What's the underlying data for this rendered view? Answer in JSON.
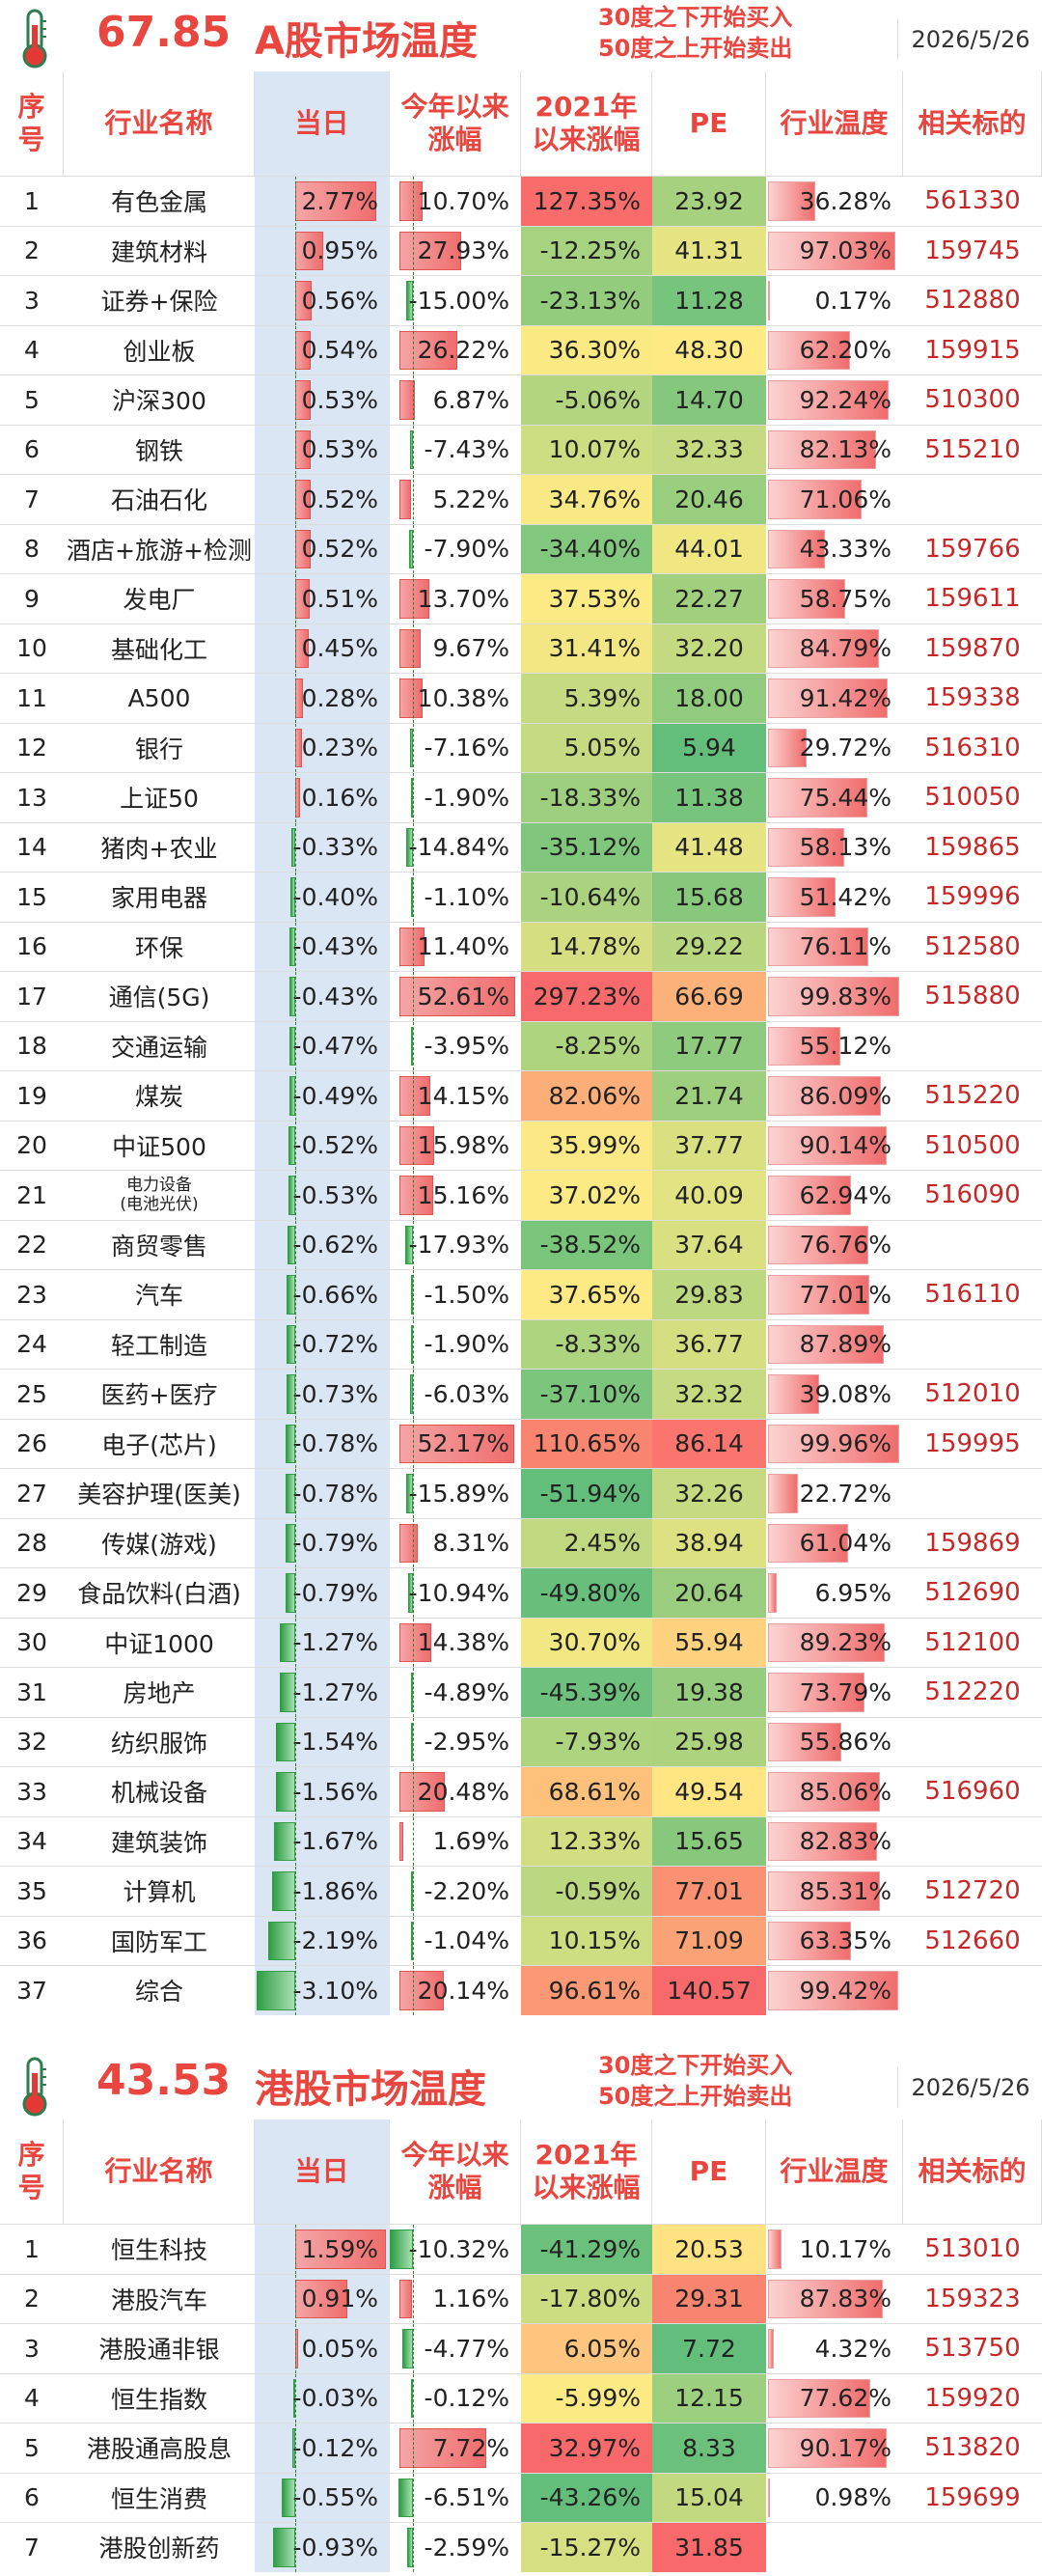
{
  "colors": {
    "accent": "#e8463f",
    "code": "#c62828",
    "today_bg": "#dbe6f5",
    "pos_bar": "#f06d6d",
    "neg_bar": "#2f9e44",
    "heat_low": "#63be7b",
    "heat_mid": "#ffeb84",
    "heat_high": "#f8696b"
  },
  "headers": {
    "seq": "序\n号",
    "name": "行业名称",
    "today": "当日",
    "ytd": "今年以来\n涨幅",
    "since2021": "2021年\n以来涨幅",
    "pe": "PE",
    "heat": "行业温度",
    "code": "相关标的"
  },
  "sections": [
    {
      "temperature": "67.85",
      "title": "A股市场温度",
      "strategy_line1": "30度之下开始买入",
      "strategy_line2": "50度之上开始卖出",
      "date": "2026/5/26",
      "rows": [
        {
          "seq": "1",
          "name": "有色金属",
          "today": "2.77%",
          "ytd": "10.70%",
          "since2021": "127.35%",
          "pe": "23.92",
          "heat": "36.28%",
          "code": "561330"
        },
        {
          "seq": "2",
          "name": "建筑材料",
          "today": "0.95%",
          "ytd": "27.93%",
          "since2021": "-12.25%",
          "pe": "41.31",
          "heat": "97.03%",
          "code": "159745"
        },
        {
          "seq": "3",
          "name": "证券+保险",
          "today": "0.56%",
          "ytd": "-15.00%",
          "since2021": "-23.13%",
          "pe": "11.28",
          "heat": "0.17%",
          "code": "512880"
        },
        {
          "seq": "4",
          "name": "创业板",
          "today": "0.54%",
          "ytd": "26.22%",
          "since2021": "36.30%",
          "pe": "48.30",
          "heat": "62.20%",
          "code": "159915"
        },
        {
          "seq": "5",
          "name": "沪深300",
          "today": "0.53%",
          "ytd": "6.87%",
          "since2021": "-5.06%",
          "pe": "14.70",
          "heat": "92.24%",
          "code": "510300"
        },
        {
          "seq": "6",
          "name": "钢铁",
          "today": "0.53%",
          "ytd": "-7.43%",
          "since2021": "10.07%",
          "pe": "32.33",
          "heat": "82.13%",
          "code": "515210"
        },
        {
          "seq": "7",
          "name": "石油石化",
          "today": "0.52%",
          "ytd": "5.22%",
          "since2021": "34.76%",
          "pe": "20.46",
          "heat": "71.06%",
          "code": ""
        },
        {
          "seq": "8",
          "name": "酒店+旅游+检测",
          "today": "0.52%",
          "ytd": "-7.90%",
          "since2021": "-34.40%",
          "pe": "44.01",
          "heat": "43.33%",
          "code": "159766"
        },
        {
          "seq": "9",
          "name": "发电厂",
          "today": "0.51%",
          "ytd": "13.70%",
          "since2021": "37.53%",
          "pe": "22.27",
          "heat": "58.75%",
          "code": "159611"
        },
        {
          "seq": "10",
          "name": "基础化工",
          "today": "0.45%",
          "ytd": "9.67%",
          "since2021": "31.41%",
          "pe": "32.20",
          "heat": "84.79%",
          "code": "159870"
        },
        {
          "seq": "11",
          "name": "A500",
          "today": "0.28%",
          "ytd": "10.38%",
          "since2021": "5.39%",
          "pe": "18.00",
          "heat": "91.42%",
          "code": "159338"
        },
        {
          "seq": "12",
          "name": "银行",
          "today": "0.23%",
          "ytd": "-7.16%",
          "since2021": "5.05%",
          "pe": "5.94",
          "heat": "29.72%",
          "code": "516310"
        },
        {
          "seq": "13",
          "name": "上证50",
          "today": "0.16%",
          "ytd": "-1.90%",
          "since2021": "-18.33%",
          "pe": "11.38",
          "heat": "75.44%",
          "code": "510050"
        },
        {
          "seq": "14",
          "name": "猪肉+农业",
          "today": "-0.33%",
          "ytd": "-14.84%",
          "since2021": "-35.12%",
          "pe": "41.48",
          "heat": "58.13%",
          "code": "159865"
        },
        {
          "seq": "15",
          "name": "家用电器",
          "today": "-0.40%",
          "ytd": "-1.10%",
          "since2021": "-10.64%",
          "pe": "15.68",
          "heat": "51.42%",
          "code": "159996"
        },
        {
          "seq": "16",
          "name": "环保",
          "today": "-0.43%",
          "ytd": "11.40%",
          "since2021": "14.78%",
          "pe": "29.22",
          "heat": "76.11%",
          "code": "512580"
        },
        {
          "seq": "17",
          "name": "通信(5G)",
          "today": "-0.43%",
          "ytd": "52.61%",
          "since2021": "297.23%",
          "pe": "66.69",
          "heat": "99.83%",
          "code": "515880"
        },
        {
          "seq": "18",
          "name": "交通运输",
          "today": "-0.47%",
          "ytd": "-3.95%",
          "since2021": "-8.25%",
          "pe": "17.77",
          "heat": "55.12%",
          "code": ""
        },
        {
          "seq": "19",
          "name": "煤炭",
          "today": "-0.49%",
          "ytd": "14.15%",
          "since2021": "82.06%",
          "pe": "21.74",
          "heat": "86.09%",
          "code": "515220"
        },
        {
          "seq": "20",
          "name": "中证500",
          "today": "-0.52%",
          "ytd": "15.98%",
          "since2021": "35.99%",
          "pe": "37.77",
          "heat": "90.14%",
          "code": "510500"
        },
        {
          "seq": "21",
          "name": "电力设备\n(电池光伏)",
          "today": "-0.53%",
          "ytd": "15.16%",
          "since2021": "37.02%",
          "pe": "40.09",
          "heat": "62.94%",
          "code": "516090"
        },
        {
          "seq": "22",
          "name": "商贸零售",
          "today": "-0.62%",
          "ytd": "-17.93%",
          "since2021": "-38.52%",
          "pe": "37.64",
          "heat": "76.76%",
          "code": ""
        },
        {
          "seq": "23",
          "name": "汽车",
          "today": "-0.66%",
          "ytd": "-1.50%",
          "since2021": "37.65%",
          "pe": "29.83",
          "heat": "77.01%",
          "code": "516110"
        },
        {
          "seq": "24",
          "name": "轻工制造",
          "today": "-0.72%",
          "ytd": "-1.90%",
          "since2021": "-8.33%",
          "pe": "36.77",
          "heat": "87.89%",
          "code": ""
        },
        {
          "seq": "25",
          "name": "医药+医疗",
          "today": "-0.73%",
          "ytd": "-6.03%",
          "since2021": "-37.10%",
          "pe": "32.32",
          "heat": "39.08%",
          "code": "512010"
        },
        {
          "seq": "26",
          "name": "电子(芯片)",
          "today": "-0.78%",
          "ytd": "52.17%",
          "since2021": "110.65%",
          "pe": "86.14",
          "heat": "99.96%",
          "code": "159995"
        },
        {
          "seq": "27",
          "name": "美容护理(医美)",
          "today": "-0.78%",
          "ytd": "-15.89%",
          "since2021": "-51.94%",
          "pe": "32.26",
          "heat": "22.72%",
          "code": ""
        },
        {
          "seq": "28",
          "name": "传媒(游戏)",
          "today": "-0.79%",
          "ytd": "8.31%",
          "since2021": "2.45%",
          "pe": "38.94",
          "heat": "61.04%",
          "code": "159869"
        },
        {
          "seq": "29",
          "name": "食品饮料(白酒)",
          "today": "-0.79%",
          "ytd": "-10.94%",
          "since2021": "-49.80%",
          "pe": "20.64",
          "heat": "6.95%",
          "code": "512690"
        },
        {
          "seq": "30",
          "name": "中证1000",
          "today": "-1.27%",
          "ytd": "14.38%",
          "since2021": "30.70%",
          "pe": "55.94",
          "heat": "89.23%",
          "code": "512100"
        },
        {
          "seq": "31",
          "name": "房地产",
          "today": "-1.27%",
          "ytd": "-4.89%",
          "since2021": "-45.39%",
          "pe": "19.38",
          "heat": "73.79%",
          "code": "512220"
        },
        {
          "seq": "32",
          "name": "纺织服饰",
          "today": "-1.54%",
          "ytd": "-2.95%",
          "since2021": "-7.93%",
          "pe": "25.98",
          "heat": "55.86%",
          "code": ""
        },
        {
          "seq": "33",
          "name": "机械设备",
          "today": "-1.56%",
          "ytd": "20.48%",
          "since2021": "68.61%",
          "pe": "49.54",
          "heat": "85.06%",
          "code": "516960"
        },
        {
          "seq": "34",
          "name": "建筑装饰",
          "today": "-1.67%",
          "ytd": "1.69%",
          "since2021": "12.33%",
          "pe": "15.65",
          "heat": "82.83%",
          "code": ""
        },
        {
          "seq": "35",
          "name": "计算机",
          "today": "-1.86%",
          "ytd": "-2.20%",
          "since2021": "-0.59%",
          "pe": "77.01",
          "heat": "85.31%",
          "code": "512720"
        },
        {
          "seq": "36",
          "name": "国防军工",
          "today": "-2.19%",
          "ytd": "-1.04%",
          "since2021": "10.15%",
          "pe": "71.09",
          "heat": "63.35%",
          "code": "512660"
        },
        {
          "seq": "37",
          "name": "综合",
          "today": "-3.10%",
          "ytd": "20.14%",
          "since2021": "96.61%",
          "pe": "140.57",
          "heat": "99.42%",
          "code": ""
        }
      ]
    },
    {
      "temperature": "43.53",
      "title": "港股市场温度",
      "strategy_line1": "30度之下开始买入",
      "strategy_line2": "50度之上开始卖出",
      "date": "2026/5/26",
      "rows": [
        {
          "seq": "1",
          "name": "恒生科技",
          "today": "1.59%",
          "ytd": "-10.32%",
          "since2021": "-41.29%",
          "pe": "20.53",
          "heat": "10.17%",
          "code": "513010"
        },
        {
          "seq": "2",
          "name": "港股汽车",
          "today": "0.91%",
          "ytd": "1.16%",
          "since2021": "-17.80%",
          "pe": "29.31",
          "heat": "87.83%",
          "code": "159323"
        },
        {
          "seq": "3",
          "name": "港股通非银",
          "today": "0.05%",
          "ytd": "-4.77%",
          "since2021": "6.05%",
          "pe": "7.72",
          "heat": "4.32%",
          "code": "513750"
        },
        {
          "seq": "4",
          "name": "恒生指数",
          "today": "-0.03%",
          "ytd": "-0.12%",
          "since2021": "-5.99%",
          "pe": "12.15",
          "heat": "77.62%",
          "code": "159920"
        },
        {
          "seq": "5",
          "name": "港股通高股息",
          "today": "-0.12%",
          "ytd": "7.72%",
          "since2021": "32.97%",
          "pe": "8.33",
          "heat": "90.17%",
          "code": "513820"
        },
        {
          "seq": "6",
          "name": "恒生消费",
          "today": "-0.55%",
          "ytd": "-6.51%",
          "since2021": "-43.26%",
          "pe": "15.04",
          "heat": "0.98%",
          "code": "159699"
        },
        {
          "seq": "7",
          "name": "港股创新药",
          "today": "-0.93%",
          "ytd": "-2.59%",
          "since2021": "-15.27%",
          "pe": "31.85",
          "heat": "",
          "code": ""
        }
      ]
    }
  ]
}
